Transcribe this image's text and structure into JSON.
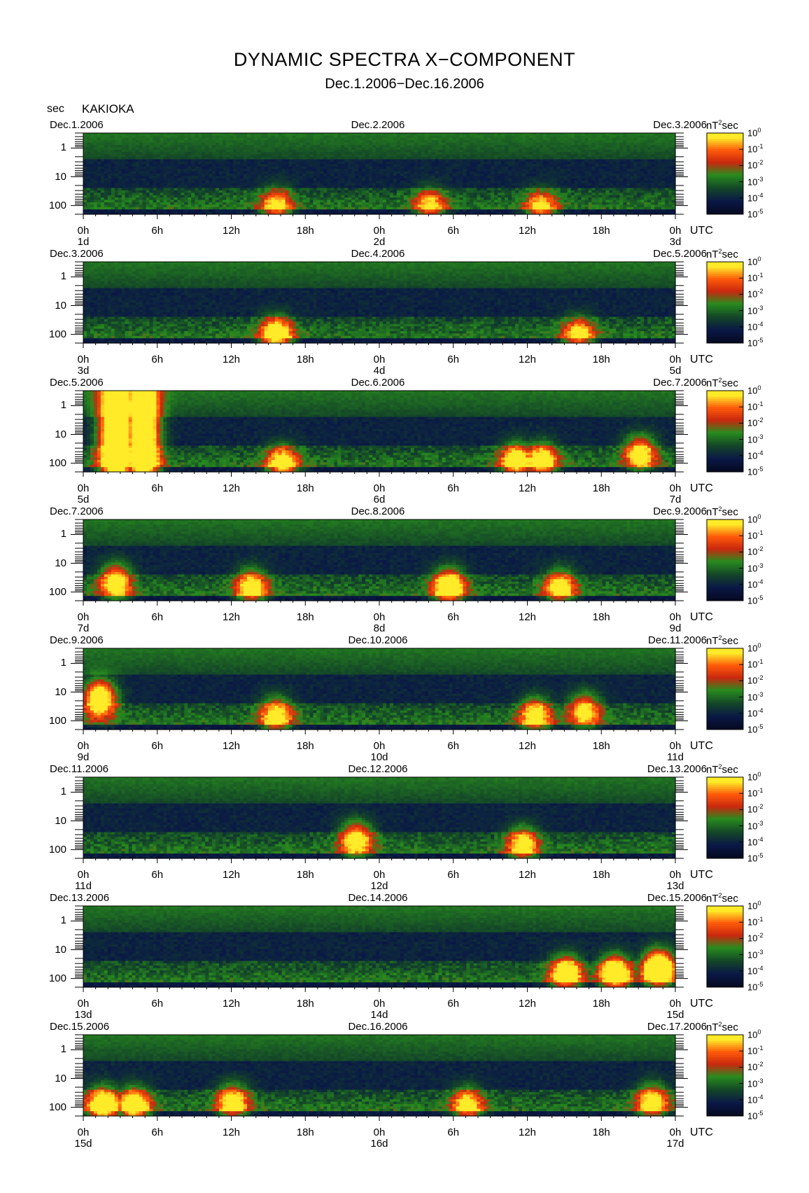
{
  "title": "DYNAMIC SPECTRA X−COMPONENT",
  "subtitle": "Dec.1.2006−Dec.16.2006",
  "y_units": "sec",
  "station": "KAKIOKA",
  "utc_label": "UTC",
  "colorbar": {
    "unit_base": "nT",
    "unit_exp": "2",
    "unit_suffix": "sec",
    "tick_base": "10",
    "tick_exponents": [
      "0",
      "-1",
      "-2",
      "-3",
      "-4",
      "-5"
    ]
  },
  "y_ticks": [
    "1",
    "10",
    "100"
  ],
  "x_ticks": [
    "0h",
    "6h",
    "12h",
    "18h",
    "0h",
    "6h",
    "12h",
    "18h",
    "0h"
  ],
  "colors": {
    "background_quiet": "#1a4a1a",
    "noise": "#0a1a3a",
    "activity_low": "#2a8a20",
    "activity_mid": "#d02010",
    "activity_high": "#ffd000"
  },
  "chart_data": {
    "type": "heatmap",
    "title": "DYNAMIC SPECTRA X−COMPONENT",
    "subtitle": "Dec.1.2006−Dec.16.2006",
    "ylabel": "sec",
    "ylim_period_sec": [
      0.3,
      200
    ],
    "y_scale": "log",
    "colorscale_range_nT2sec": [
      1e-05,
      1
    ],
    "colorscale": "log",
    "panels": [
      {
        "start": "Dec.1.2006",
        "mid": "Dec.2.2006",
        "end": "Dec.3.2006",
        "days": [
          "1d",
          "2d",
          "3d"
        ],
        "events": [
          {
            "hour": 15.5,
            "period_sec": 100,
            "level": 0.35
          },
          {
            "hour": 28,
            "period_sec": 100,
            "level": 0.3
          },
          {
            "hour": 37,
            "period_sec": 120,
            "level": 0.35
          }
        ]
      },
      {
        "start": "Dec.3.2006",
        "mid": "Dec.4.2006",
        "end": "Dec.5.2006",
        "days": [
          "3d",
          "4d",
          "5d"
        ],
        "events": [
          {
            "hour": 15.5,
            "period_sec": 100,
            "level": 0.6
          },
          {
            "hour": 40,
            "period_sec": 100,
            "level": 0.35
          }
        ]
      },
      {
        "start": "Dec.5.2006",
        "mid": "Dec.6.2006",
        "end": "Dec.7.2006",
        "days": [
          "5d",
          "6d",
          "7d"
        ],
        "events": [
          {
            "hour": 2.5,
            "period_sec": 10,
            "level": 1.0
          },
          {
            "hour": 4.7,
            "period_sec": 10,
            "level": 0.95
          },
          {
            "hour": 16,
            "period_sec": 100,
            "level": 0.5
          },
          {
            "hour": 35,
            "period_sec": 80,
            "level": 0.55
          },
          {
            "hour": 37,
            "period_sec": 80,
            "level": 0.55
          },
          {
            "hour": 45,
            "period_sec": 40,
            "level": 0.45
          }
        ]
      },
      {
        "start": "Dec.7.2006",
        "mid": "Dec.8.2006",
        "end": "Dec.9.2006",
        "days": [
          "7d",
          "8d",
          "9d"
        ],
        "events": [
          {
            "hour": 2.5,
            "period_sec": 40,
            "level": 0.5
          },
          {
            "hour": 13.5,
            "period_sec": 60,
            "level": 0.45
          },
          {
            "hour": 29.5,
            "period_sec": 60,
            "level": 0.65
          },
          {
            "hour": 38.5,
            "period_sec": 60,
            "level": 0.4
          }
        ]
      },
      {
        "start": "Dec.9.2006",
        "mid": "Dec.10.2006",
        "end": "Dec.11.2006",
        "days": [
          "9d",
          "10d",
          "11d"
        ],
        "events": [
          {
            "hour": 1.2,
            "period_sec": 15,
            "level": 0.75
          },
          {
            "hour": 15.5,
            "period_sec": 60,
            "level": 0.45
          },
          {
            "hour": 36.5,
            "period_sec": 60,
            "level": 0.45
          },
          {
            "hour": 40.5,
            "period_sec": 40,
            "level": 0.4
          }
        ]
      },
      {
        "start": "Dec.11.2006",
        "mid": "Dec.12.2006",
        "end": "Dec.13.2006",
        "days": [
          "11d",
          "12d",
          "13d"
        ],
        "events": [
          {
            "hour": 22,
            "period_sec": 40,
            "level": 0.5
          },
          {
            "hour": 35.5,
            "period_sec": 60,
            "level": 0.4
          }
        ]
      },
      {
        "start": "Dec.13.2006",
        "mid": "Dec.14.2006",
        "end": "Dec.15.2006",
        "days": [
          "13d",
          "14d",
          "15d"
        ],
        "events": [
          {
            "hour": 39,
            "period_sec": 60,
            "level": 0.6
          },
          {
            "hour": 43,
            "period_sec": 60,
            "level": 0.7
          },
          {
            "hour": 46.5,
            "period_sec": 40,
            "level": 0.9
          }
        ]
      },
      {
        "start": "Dec.15.2006",
        "mid": "Dec.16.2006",
        "end": "Dec.17.2006",
        "days": [
          "15d",
          "16d",
          "17d"
        ],
        "events": [
          {
            "hour": 1.5,
            "period_sec": 80,
            "level": 0.7
          },
          {
            "hour": 4,
            "period_sec": 80,
            "level": 0.6
          },
          {
            "hour": 12,
            "period_sec": 60,
            "level": 0.45
          },
          {
            "hour": 31,
            "period_sec": 80,
            "level": 0.4
          },
          {
            "hour": 46,
            "period_sec": 60,
            "level": 0.45
          }
        ]
      }
    ]
  }
}
